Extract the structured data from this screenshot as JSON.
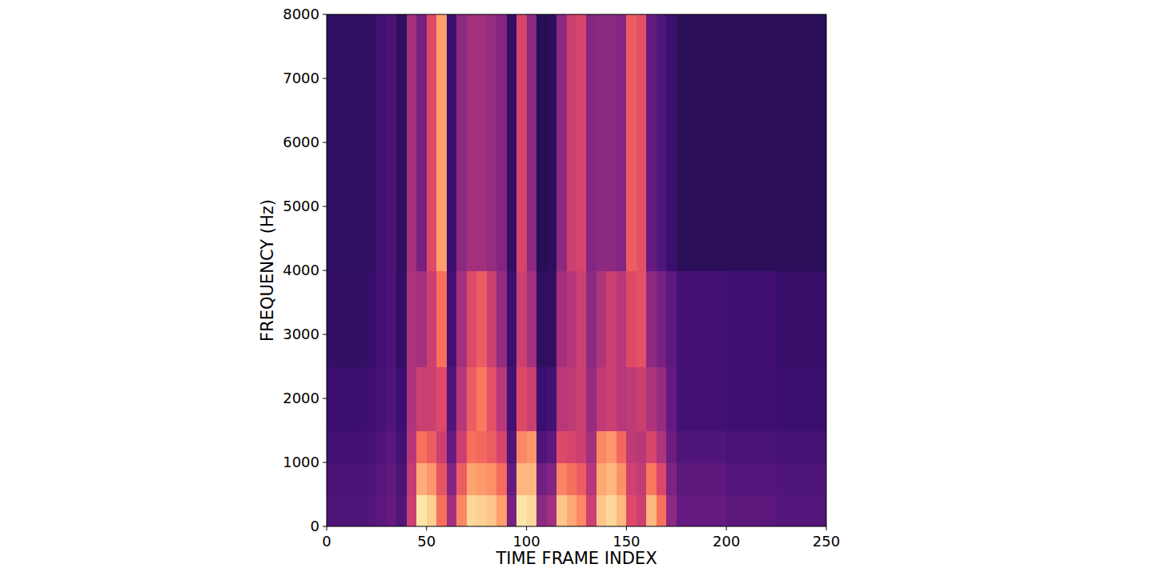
{
  "chart_data": {
    "type": "heatmap",
    "x_label": "TIME FRAME INDEX",
    "y_label": "FREQUENCY (Hz)",
    "xlim": [
      0,
      250
    ],
    "ylim": [
      0,
      8000
    ],
    "xticks": [
      0,
      50,
      100,
      150,
      200,
      250
    ],
    "yticks": [
      0,
      1000,
      2000,
      3000,
      4000,
      5000,
      6000,
      7000,
      8000
    ],
    "zlim": [
      0,
      100
    ],
    "x_edges": [
      0,
      5,
      10,
      15,
      20,
      25,
      30,
      35,
      40,
      45,
      50,
      55,
      60,
      65,
      70,
      75,
      80,
      85,
      90,
      95,
      100,
      105,
      110,
      115,
      120,
      125,
      130,
      135,
      140,
      145,
      150,
      155,
      160,
      165,
      170,
      175,
      180,
      185,
      190,
      195,
      200,
      205,
      210,
      215,
      220,
      225,
      230,
      235,
      240,
      245,
      250
    ],
    "y_edges": [
      0,
      500,
      1000,
      1500,
      2000,
      2500,
      3000,
      3500,
      4000,
      4500,
      5000,
      5500,
      6000,
      6500,
      7000,
      7500,
      8000
    ],
    "cells": [
      [
        25,
        25,
        25,
        25,
        26,
        28,
        30,
        25,
        55,
        95,
        90,
        70,
        45,
        75,
        92,
        90,
        88,
        80,
        35,
        95,
        92,
        40,
        45,
        88,
        82,
        75,
        55,
        88,
        92,
        85,
        60,
        55,
        85,
        70,
        40,
        30,
        30,
        30,
        30,
        30,
        28,
        28,
        28,
        28,
        28,
        26,
        26,
        26,
        26,
        26
      ],
      [
        24,
        24,
        24,
        24,
        25,
        27,
        29,
        24,
        53,
        83,
        78,
        63,
        38,
        65,
        81,
        79,
        77,
        69,
        30,
        85,
        85,
        33,
        37,
        74,
        70,
        65,
        50,
        82,
        85,
        77,
        56,
        53,
        72,
        59,
        36,
        28,
        28,
        28,
        28,
        28,
        26,
        26,
        26,
        26,
        26,
        25,
        25,
        25,
        25,
        25
      ],
      [
        22,
        22,
        22,
        22,
        23,
        25,
        27,
        22,
        50,
        70,
        65,
        55,
        30,
        55,
        70,
        68,
        65,
        58,
        25,
        75,
        78,
        25,
        28,
        60,
        58,
        55,
        45,
        75,
        78,
        68,
        52,
        50,
        58,
        48,
        32,
        25,
        25,
        25,
        25,
        25,
        24,
        24,
        24,
        24,
        24,
        23,
        23,
        23,
        23,
        23
      ],
      [
        20,
        20,
        20,
        20,
        21,
        23,
        25,
        20,
        48,
        55,
        55,
        60,
        25,
        50,
        65,
        72,
        62,
        50,
        22,
        60,
        55,
        20,
        22,
        50,
        52,
        55,
        42,
        52,
        55,
        50,
        52,
        55,
        48,
        42,
        30,
        22,
        22,
        22,
        22,
        22,
        21,
        21,
        21,
        21,
        21,
        20,
        20,
        20,
        20,
        20
      ],
      [
        20,
        20,
        20,
        20,
        21,
        23,
        25,
        20,
        48,
        55,
        55,
        60,
        25,
        50,
        65,
        72,
        62,
        50,
        22,
        60,
        55,
        20,
        22,
        50,
        52,
        55,
        42,
        52,
        55,
        50,
        52,
        55,
        48,
        42,
        30,
        22,
        22,
        22,
        22,
        22,
        21,
        21,
        21,
        21,
        21,
        20,
        20,
        20,
        20,
        20
      ],
      [
        18,
        18,
        18,
        18,
        19,
        22,
        24,
        18,
        48,
        45,
        55,
        70,
        22,
        45,
        60,
        65,
        55,
        42,
        20,
        55,
        45,
        17,
        18,
        45,
        50,
        55,
        40,
        48,
        55,
        50,
        60,
        62,
        40,
        35,
        28,
        22,
        22,
        22,
        22,
        22,
        21,
        21,
        21,
        21,
        21,
        19,
        19,
        19,
        19,
        19
      ],
      [
        18,
        18,
        18,
        18,
        19,
        22,
        24,
        18,
        48,
        45,
        55,
        70,
        22,
        45,
        60,
        65,
        55,
        42,
        20,
        55,
        45,
        17,
        18,
        45,
        50,
        55,
        40,
        48,
        55,
        50,
        60,
        62,
        40,
        35,
        28,
        22,
        22,
        22,
        22,
        22,
        21,
        21,
        21,
        21,
        21,
        19,
        19,
        19,
        19,
        19
      ],
      [
        18,
        18,
        18,
        18,
        19,
        22,
        24,
        18,
        48,
        45,
        55,
        70,
        22,
        45,
        60,
        65,
        55,
        42,
        20,
        55,
        45,
        17,
        18,
        45,
        50,
        55,
        40,
        48,
        55,
        50,
        60,
        62,
        40,
        35,
        28,
        22,
        22,
        22,
        22,
        22,
        21,
        21,
        21,
        21,
        21,
        19,
        19,
        19,
        19,
        19
      ],
      [
        17,
        17,
        17,
        17,
        18,
        22,
        24,
        17,
        45,
        35,
        60,
        80,
        20,
        40,
        45,
        45,
        42,
        38,
        18,
        58,
        40,
        15,
        16,
        40,
        55,
        58,
        38,
        40,
        40,
        38,
        65,
        62,
        30,
        25,
        20,
        16,
        16,
        16,
        16,
        16,
        16,
        16,
        16,
        16,
        16,
        16,
        16,
        16,
        16,
        16
      ],
      [
        17,
        17,
        17,
        17,
        18,
        22,
        24,
        17,
        45,
        35,
        60,
        80,
        20,
        40,
        45,
        45,
        42,
        38,
        18,
        58,
        40,
        15,
        16,
        40,
        55,
        58,
        38,
        40,
        40,
        38,
        65,
        62,
        30,
        25,
        20,
        16,
        16,
        16,
        16,
        16,
        16,
        16,
        16,
        16,
        16,
        16,
        16,
        16,
        16,
        16
      ],
      [
        17,
        17,
        17,
        17,
        18,
        22,
        24,
        17,
        45,
        35,
        60,
        80,
        20,
        40,
        45,
        45,
        42,
        38,
        18,
        58,
        40,
        15,
        16,
        40,
        55,
        58,
        38,
        40,
        40,
        38,
        65,
        62,
        30,
        25,
        20,
        16,
        16,
        16,
        16,
        16,
        16,
        16,
        16,
        16,
        16,
        16,
        16,
        16,
        16,
        16
      ],
      [
        17,
        17,
        17,
        17,
        18,
        22,
        24,
        17,
        45,
        35,
        60,
        80,
        20,
        40,
        45,
        45,
        42,
        38,
        18,
        58,
        40,
        15,
        16,
        40,
        55,
        58,
        38,
        40,
        40,
        38,
        65,
        62,
        30,
        25,
        20,
        16,
        16,
        16,
        16,
        16,
        16,
        16,
        16,
        16,
        16,
        16,
        16,
        16,
        16,
        16
      ],
      [
        17,
        17,
        17,
        17,
        18,
        22,
        24,
        17,
        45,
        35,
        60,
        80,
        20,
        40,
        45,
        45,
        42,
        38,
        18,
        58,
        40,
        15,
        16,
        40,
        55,
        58,
        38,
        40,
        40,
        38,
        65,
        62,
        30,
        25,
        20,
        16,
        16,
        16,
        16,
        16,
        16,
        16,
        16,
        16,
        16,
        16,
        16,
        16,
        16,
        16
      ],
      [
        17,
        17,
        17,
        17,
        18,
        22,
        24,
        17,
        45,
        35,
        60,
        80,
        20,
        40,
        45,
        45,
        42,
        38,
        18,
        58,
        40,
        15,
        16,
        40,
        55,
        58,
        38,
        40,
        40,
        38,
        65,
        62,
        30,
        25,
        20,
        16,
        16,
        16,
        16,
        16,
        16,
        16,
        16,
        16,
        16,
        16,
        16,
        16,
        16,
        16
      ],
      [
        17,
        17,
        17,
        17,
        18,
        22,
        24,
        17,
        45,
        35,
        60,
        80,
        20,
        40,
        45,
        45,
        42,
        38,
        18,
        58,
        40,
        15,
        16,
        40,
        55,
        58,
        38,
        40,
        40,
        38,
        65,
        62,
        30,
        25,
        20,
        16,
        16,
        16,
        16,
        16,
        16,
        16,
        16,
        16,
        16,
        16,
        16,
        16,
        16,
        16
      ],
      [
        17,
        17,
        17,
        17,
        18,
        22,
        24,
        17,
        45,
        35,
        60,
        80,
        20,
        40,
        45,
        45,
        42,
        38,
        18,
        58,
        40,
        15,
        16,
        40,
        55,
        58,
        38,
        40,
        40,
        38,
        65,
        62,
        30,
        25,
        20,
        16,
        16,
        16,
        16,
        16,
        16,
        16,
        16,
        16,
        16,
        16,
        16,
        16,
        16,
        16
      ]
    ]
  }
}
